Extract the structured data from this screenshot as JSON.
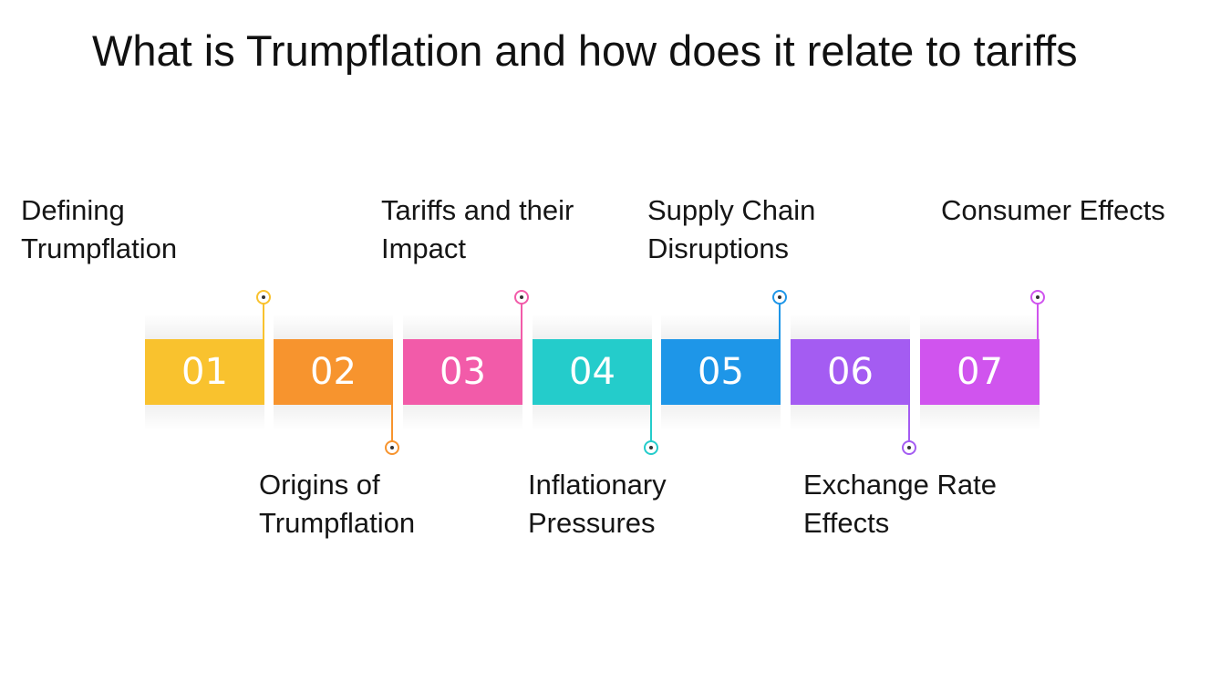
{
  "title": "What is Trumpflation and how does it relate to tariffs",
  "steps": [
    {
      "number": "01",
      "label": "Defining Trumpflation",
      "color": "#F9C22E"
    },
    {
      "number": "02",
      "label": "Origins of Trumpflation",
      "color": "#F7942E"
    },
    {
      "number": "03",
      "label": "Tariffs and their Impact",
      "color": "#F25BA9"
    },
    {
      "number": "04",
      "label": "Inflationary Pressures",
      "color": "#24CCCB"
    },
    {
      "number": "05",
      "label": "Supply Chain Disruptions",
      "color": "#1E96E8"
    },
    {
      "number": "06",
      "label": "Exchange Rate Effects",
      "color": "#A45CF2"
    },
    {
      "number": "07",
      "label": "Consumer Effects",
      "color": "#D054EE"
    }
  ]
}
